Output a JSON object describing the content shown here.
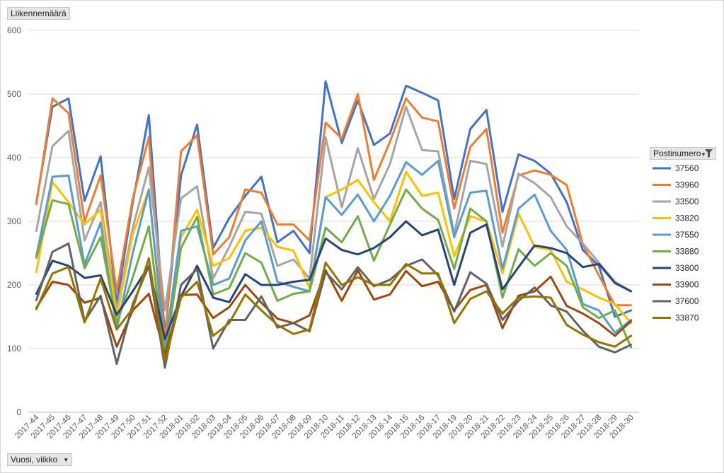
{
  "chart_data": {
    "type": "line",
    "ylabel": "Liikennemäärä",
    "xlabel": "Vuosi, viikko",
    "legend_title": "Postinumero",
    "legend_position": "right",
    "grid": true,
    "ylim": [
      0,
      600
    ],
    "yticks": [
      0,
      100,
      200,
      300,
      400,
      500,
      600
    ],
    "categories": [
      "2017-44",
      "2017-45",
      "2017-46",
      "2017-47",
      "2017-48",
      "2017-49",
      "2017-50",
      "2017-51",
      "2017-52",
      "2018-01",
      "2018-02",
      "2018-03",
      "2018-04",
      "2018-05",
      "2018-06",
      "2018-07",
      "2018-08",
      "2018-09",
      "2018-10",
      "2018-11",
      "2018-12",
      "2018-13",
      "2018-14",
      "2018-15",
      "2018-16",
      "2018-17",
      "2018-19",
      "2018-20",
      "2018-21",
      "2018-22",
      "2018-23",
      "2018-24",
      "2018-25",
      "2018-26",
      "2018-27",
      "2018-28",
      "2018-29",
      "2018-30"
    ],
    "series": [
      {
        "name": "37560",
        "color": "#4472c4",
        "values": [
          330,
          480,
          493,
          332,
          402,
          170,
          330,
          467,
          120,
          372,
          452,
          258,
          305,
          340,
          370,
          267,
          285,
          250,
          520,
          423,
          490,
          420,
          438,
          513,
          502,
          490,
          335,
          445,
          475,
          315,
          405,
          395,
          375,
          330,
          255,
          230,
          150,
          160
        ]
      },
      {
        "name": "33960",
        "color": "#ed7d31",
        "values": [
          327,
          493,
          470,
          300,
          372,
          190,
          336,
          432,
          110,
          410,
          435,
          248,
          275,
          350,
          345,
          295,
          295,
          270,
          455,
          430,
          500,
          365,
          425,
          493,
          463,
          457,
          320,
          417,
          445,
          282,
          372,
          380,
          373,
          357,
          264,
          215,
          168,
          168
        ]
      },
      {
        "name": "33500",
        "color": "#a5a5a5",
        "values": [
          285,
          418,
          442,
          270,
          330,
          160,
          290,
          385,
          160,
          336,
          355,
          210,
          260,
          315,
          312,
          230,
          240,
          210,
          432,
          322,
          415,
          335,
          390,
          480,
          412,
          410,
          280,
          395,
          390,
          260,
          375,
          360,
          338,
          292,
          265,
          235,
          205,
          190
        ]
      },
      {
        "name": "33820",
        "color": "#ffc000",
        "values": [
          220,
          362,
          330,
          295,
          318,
          150,
          280,
          350,
          95,
          275,
          318,
          230,
          242,
          285,
          290,
          260,
          254,
          195,
          338,
          350,
          365,
          330,
          300,
          378,
          340,
          345,
          245,
          308,
          300,
          218,
          312,
          260,
          255,
          205,
          193,
          180,
          170,
          140
        ]
      },
      {
        "name": "37550",
        "color": "#5b9bd5",
        "values": [
          245,
          370,
          372,
          232,
          298,
          130,
          250,
          350,
          100,
          285,
          292,
          200,
          210,
          270,
          300,
          205,
          197,
          190,
          338,
          310,
          342,
          300,
          340,
          393,
          373,
          395,
          275,
          345,
          348,
          225,
          320,
          342,
          285,
          255,
          170,
          160,
          125,
          145
        ]
      },
      {
        "name": "33880",
        "color": "#70ad47",
        "values": [
          243,
          333,
          327,
          226,
          275,
          140,
          212,
          292,
          85,
          258,
          307,
          185,
          195,
          250,
          235,
          175,
          186,
          190,
          290,
          267,
          308,
          238,
          295,
          350,
          320,
          302,
          225,
          320,
          300,
          180,
          256,
          230,
          250,
          230,
          165,
          148,
          160,
          102
        ]
      },
      {
        "name": "33800",
        "color": "#264478",
        "values": [
          186,
          238,
          230,
          211,
          215,
          153,
          190,
          230,
          115,
          182,
          230,
          180,
          173,
          217,
          200,
          200,
          205,
          208,
          273,
          255,
          248,
          258,
          275,
          300,
          278,
          287,
          200,
          282,
          295,
          193,
          228,
          262,
          258,
          250,
          228,
          233,
          203,
          190
        ]
      },
      {
        "name": "33900",
        "color": "#9e480e",
        "values": [
          164,
          205,
          200,
          172,
          180,
          103,
          160,
          186,
          90,
          184,
          185,
          148,
          165,
          200,
          172,
          147,
          140,
          152,
          223,
          175,
          223,
          177,
          185,
          222,
          198,
          205,
          160,
          192,
          200,
          132,
          183,
          190,
          213,
          167,
          155,
          140,
          120,
          143
        ]
      },
      {
        "name": "37600",
        "color": "#636363",
        "values": [
          176,
          252,
          265,
          143,
          183,
          76,
          170,
          230,
          70,
          200,
          225,
          100,
          145,
          145,
          182,
          133,
          140,
          127,
          220,
          193,
          228,
          198,
          208,
          230,
          240,
          215,
          158,
          220,
          202,
          145,
          175,
          196,
          168,
          158,
          128,
          103,
          94,
          106
        ]
      },
      {
        "name": "33870",
        "color": "#997300",
        "values": [
          162,
          218,
          228,
          141,
          210,
          130,
          163,
          242,
          80,
          180,
          205,
          120,
          140,
          185,
          160,
          137,
          123,
          130,
          235,
          200,
          212,
          200,
          200,
          233,
          218,
          218,
          140,
          178,
          190,
          155,
          180,
          182,
          180,
          137,
          122,
          110,
          103,
          120
        ]
      }
    ]
  }
}
